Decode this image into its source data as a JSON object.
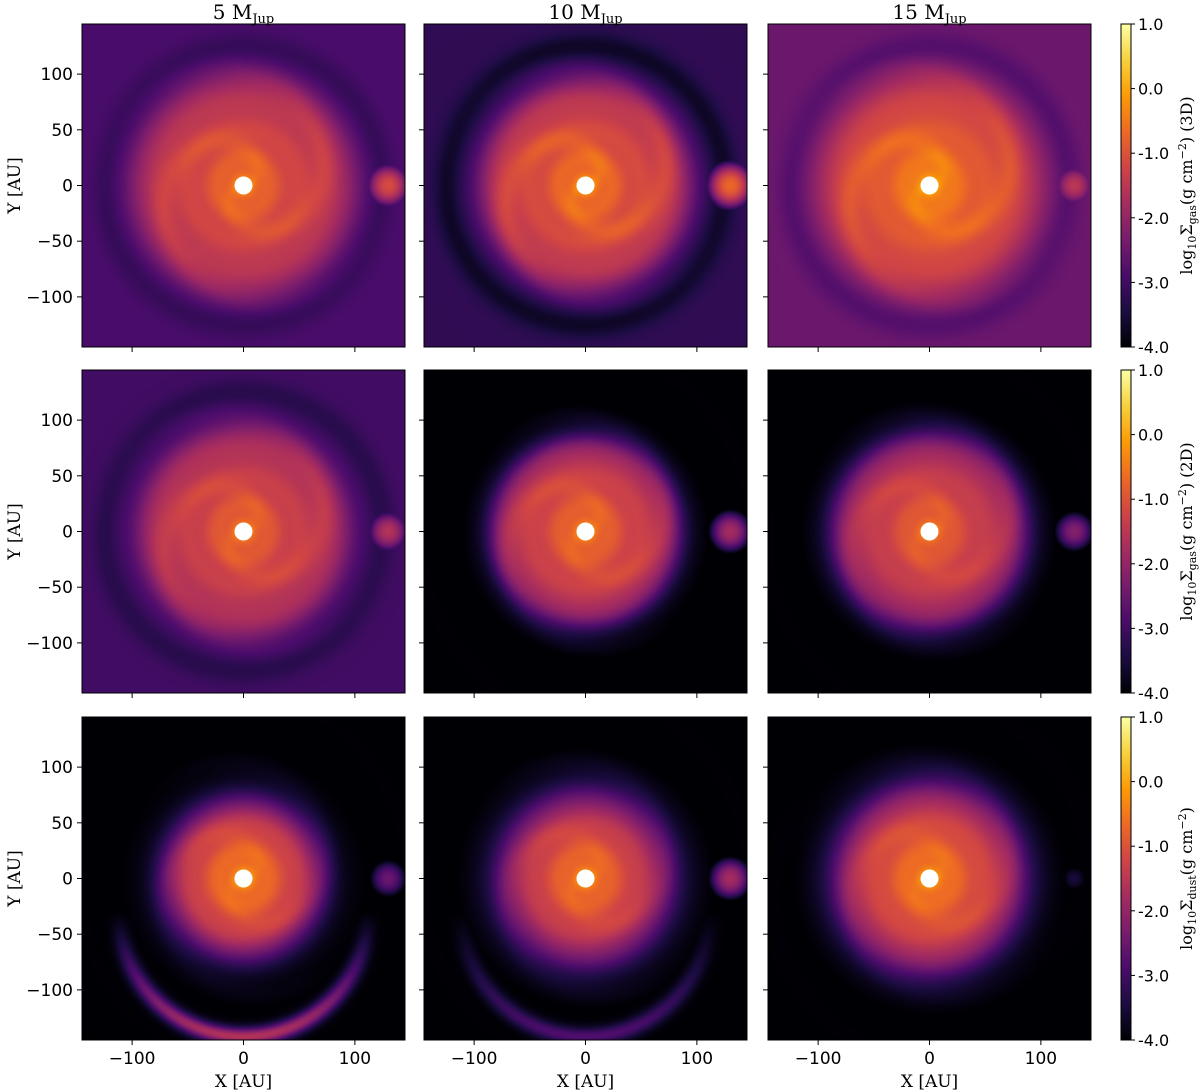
{
  "chart_data": {
    "type": "heatmap",
    "columns": [
      {
        "label": "5 M",
        "sub": "Jup"
      },
      {
        "label": "10 M",
        "sub": "Jup"
      },
      {
        "label": "15 M",
        "sub": "Jup"
      }
    ],
    "rows": [
      {
        "quantity": "gas",
        "cbar_label": {
          "pre": "log",
          "pre_sub": "10",
          "sym": "Σ",
          "sym_sub": "gas",
          "unit_base": "(g cm",
          "unit_sup": "−2",
          "unit_end": ")",
          "suffix": " (3D)"
        }
      },
      {
        "quantity": "gas",
        "cbar_label": {
          "pre": "log",
          "pre_sub": "10",
          "sym": "Σ",
          "sym_sub": "gas",
          "unit_base": "(g cm",
          "unit_sup": "−2",
          "unit_end": ")",
          "suffix": " (2D)"
        }
      },
      {
        "quantity": "dust",
        "cbar_label": {
          "pre": "log",
          "pre_sub": "10",
          "sym": "Σ",
          "sym_sub": "dust",
          "unit_base": "(g cm",
          "unit_sup": "−2",
          "unit_end": ")",
          "suffix": ""
        }
      }
    ],
    "xlabel": "X [AU]",
    "ylabel": "Y [AU]",
    "xlim": [
      -145,
      145
    ],
    "ylim": [
      -145,
      145
    ],
    "xticks": [
      -100,
      0,
      100
    ],
    "yticks": [
      100,
      50,
      0,
      -50,
      -100
    ],
    "xtick_labels": [
      "−100",
      "0",
      "100"
    ],
    "ytick_labels": [
      "100",
      "50",
      "0",
      "−50",
      "−100"
    ],
    "colorbar": {
      "range": [
        -4.0,
        1.0
      ],
      "ticks": [
        1.0,
        0.0,
        -1.0,
        -2.0,
        -3.0,
        -4.0
      ],
      "tick_labels": [
        "1.0",
        "0.0",
        "-1.0",
        "-2.0",
        "-3.0",
        "-4.0"
      ],
      "colormap": "inferno",
      "colormap_stops": [
        "#000004",
        "#1b0c41",
        "#4a0c6b",
        "#781c6d",
        "#a52c60",
        "#cf4446",
        "#ed6925",
        "#fb9b06",
        "#f7d13d",
        "#fcffa4"
      ]
    },
    "panels": [
      {
        "row": 0,
        "col": 0,
        "background": -2.9,
        "disk_peak": -0.8,
        "disk_radius_au": 100,
        "disk_edge": 0.9,
        "spiral_strength": 0.45,
        "gap": 0.25,
        "ripple": 0.35,
        "planet_clump": -1.1,
        "inner_hole_color": "#ffffff"
      },
      {
        "row": 0,
        "col": 1,
        "background": -3.2,
        "disk_peak": -0.7,
        "disk_radius_au": 95,
        "disk_edge": 0.9,
        "spiral_strength": 0.55,
        "gap": 0.5,
        "ripple": 0.4,
        "planet_clump": -0.7,
        "inner_hole_color": "#ffffff"
      },
      {
        "row": 0,
        "col": 2,
        "background": -2.5,
        "disk_peak": -0.5,
        "disk_radius_au": 100,
        "disk_edge": 0.8,
        "spiral_strength": 0.5,
        "gap": 0.3,
        "ripple": 0.3,
        "planet_clump": -1.5,
        "inner_hole_color": "#ffffff"
      },
      {
        "row": 1,
        "col": 0,
        "background": -3.0,
        "disk_peak": -0.9,
        "disk_radius_au": 95,
        "disk_edge": 1.0,
        "spiral_strength": 0.4,
        "gap": 0.3,
        "ripple": 0.35,
        "planet_clump": -1.6,
        "inner_hole_color": "#ffffff"
      },
      {
        "row": 1,
        "col": 1,
        "background": -4.0,
        "disk_peak": -0.8,
        "disk_radius_au": 85,
        "disk_edge": 0.75,
        "spiral_strength": 0.4,
        "gap": 0.2,
        "ripple": 0.35,
        "planet_clump": -1.8,
        "inner_hole_color": "#ffffff"
      },
      {
        "row": 1,
        "col": 2,
        "background": -4.0,
        "disk_peak": -0.9,
        "disk_radius_au": 88,
        "disk_edge": 0.7,
        "spiral_strength": 0.35,
        "gap": 0.1,
        "ripple": 0.3,
        "planet_clump": -2.2,
        "inner_hole_color": "#ffffff"
      },
      {
        "row": 2,
        "col": 0,
        "background": -4.0,
        "disk_peak": -0.6,
        "disk_radius_au": 72,
        "disk_edge": 0.5,
        "spiral_strength": 0.3,
        "gap": 0.1,
        "ripple": 0.4,
        "planet_clump": -2.5,
        "lower_arc": -1.6,
        "inner_hole_color": "#ffffff"
      },
      {
        "row": 2,
        "col": 1,
        "background": -4.0,
        "disk_peak": -0.7,
        "disk_radius_au": 78,
        "disk_edge": 0.45,
        "spiral_strength": 0.3,
        "gap": 0.1,
        "ripple": 0.35,
        "planet_clump": -1.8,
        "lower_arc": -2.8,
        "inner_hole_color": "#ffffff"
      },
      {
        "row": 2,
        "col": 2,
        "background": -4.0,
        "disk_peak": -0.6,
        "disk_radius_au": 85,
        "disk_edge": 0.5,
        "spiral_strength": 0.3,
        "gap": 0.05,
        "ripple": 0.35,
        "planet_clump": -3.5,
        "inner_hole_color": "#ffffff"
      }
    ]
  }
}
